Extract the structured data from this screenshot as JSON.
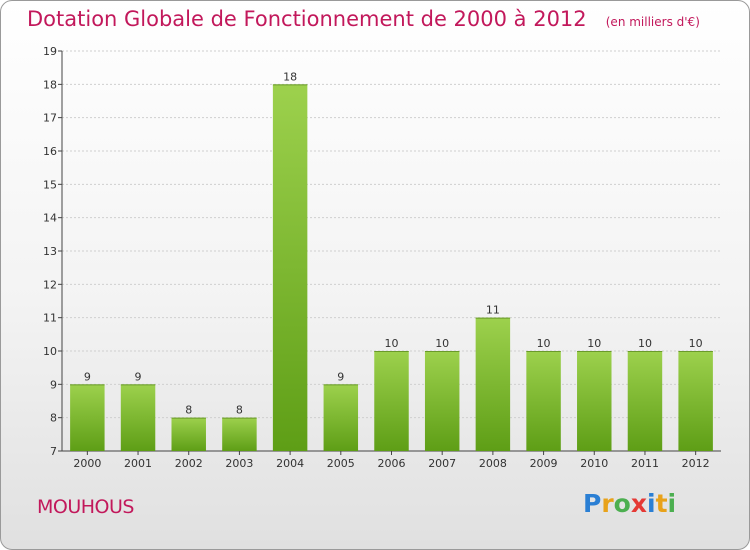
{
  "header": {
    "title": "Dotation Globale de Fonctionnement de 2000 à 2012",
    "subtitle": "(en milliers d'€)"
  },
  "footer": {
    "commune": "MOUHOUS",
    "logo_text": "Proxiti",
    "logo_letters": [
      {
        "char": "P",
        "color": "#2a7fd4"
      },
      {
        "char": "r",
        "color": "#e8a21a"
      },
      {
        "char": "o",
        "color": "#4caf50"
      },
      {
        "char": "x",
        "color": "#e53935"
      },
      {
        "char": "i",
        "color": "#2a7fd4"
      },
      {
        "char": "t",
        "color": "#e8a21a"
      },
      {
        "char": "i",
        "color": "#4caf50"
      }
    ]
  },
  "colors": {
    "accent": "#c2185b",
    "bar_top": "#9dd14d",
    "bar_bottom": "#5e9e16",
    "grid": "#cfcfcf"
  },
  "chart_data": {
    "type": "bar",
    "categories": [
      "2000",
      "2001",
      "2002",
      "2003",
      "2004",
      "2005",
      "2006",
      "2007",
      "2008",
      "2009",
      "2010",
      "2011",
      "2012"
    ],
    "values": [
      9,
      9,
      8,
      8,
      18,
      9,
      10,
      10,
      11,
      10,
      10,
      10,
      10
    ],
    "data_labels": [
      "9",
      "9",
      "8",
      "8",
      "18",
      "9",
      "10",
      "10",
      "11",
      "10",
      "10",
      "10",
      "10"
    ],
    "ylim": [
      7,
      19
    ],
    "yticks": [
      "7",
      "8",
      "9",
      "10",
      "11",
      "12",
      "13",
      "14",
      "15",
      "16",
      "17",
      "18",
      "19"
    ],
    "grid": true
  }
}
